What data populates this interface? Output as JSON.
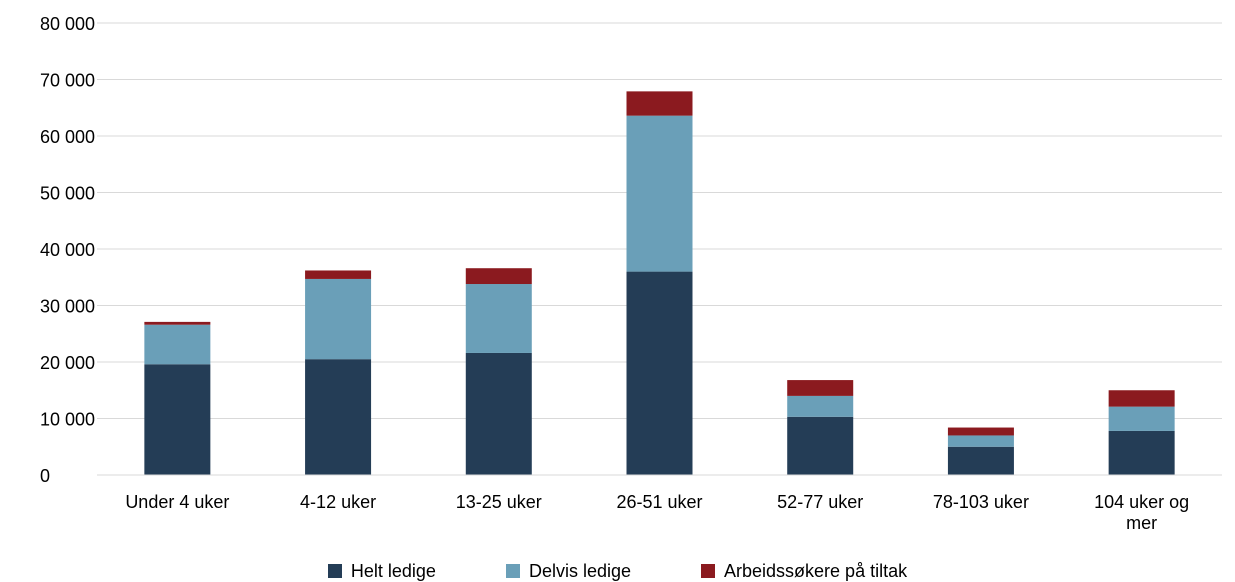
{
  "chart_data": {
    "type": "bar",
    "stacked": true,
    "categories": [
      "Under 4 uker",
      "4-12 uker",
      "13-25 uker",
      "26-51 uker",
      "52-77 uker",
      "78-103 uker",
      "104 uker og mer"
    ],
    "series": [
      {
        "name": "Helt ledige",
        "color": "#243d56",
        "values": [
          19600,
          20500,
          21600,
          36000,
          10300,
          5000,
          7800
        ]
      },
      {
        "name": "Delvis ledige",
        "color": "#6a9fb8",
        "values": [
          7000,
          14200,
          12200,
          27600,
          3700,
          2000,
          4300
        ]
      },
      {
        "name": "Arbeidssøkere på tiltak",
        "color": "#8b1a1f",
        "values": [
          500,
          1500,
          2800,
          4300,
          2800,
          1400,
          2900
        ]
      }
    ],
    "ytick_labels": [
      "0",
      "10  000",
      "20  000",
      "30  000",
      "40  000",
      "50  000",
      "60  000",
      "70  000",
      "80  000"
    ],
    "ylim": [
      0,
      80000
    ],
    "grid": true,
    "legend_position": "bottom"
  }
}
